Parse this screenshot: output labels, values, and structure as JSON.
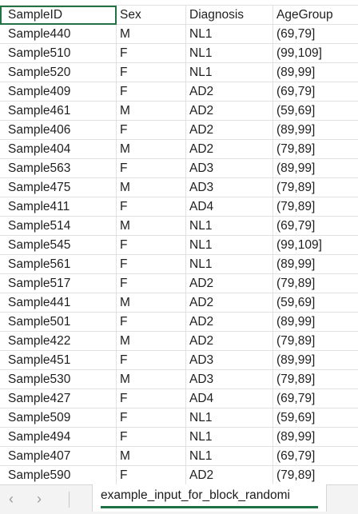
{
  "sheet": {
    "columns": [
      "SampleID",
      "Sex",
      "Diagnosis",
      "AgeGroup"
    ],
    "rows": [
      [
        "Sample440",
        "M",
        "NL1",
        "(69,79]"
      ],
      [
        "Sample510",
        "F",
        "NL1",
        "(99,109]"
      ],
      [
        "Sample520",
        "F",
        "NL1",
        "(89,99]"
      ],
      [
        "Sample409",
        "F",
        "AD2",
        "(69,79]"
      ],
      [
        "Sample461",
        "M",
        "AD2",
        "(59,69]"
      ],
      [
        "Sample406",
        "F",
        "AD2",
        "(89,99]"
      ],
      [
        "Sample404",
        "M",
        "AD2",
        "(79,89]"
      ],
      [
        "Sample563",
        "F",
        "AD3",
        "(89,99]"
      ],
      [
        "Sample475",
        "M",
        "AD3",
        "(79,89]"
      ],
      [
        "Sample411",
        "F",
        "AD4",
        "(79,89]"
      ],
      [
        "Sample514",
        "M",
        "NL1",
        "(69,79]"
      ],
      [
        "Sample545",
        "F",
        "NL1",
        "(99,109]"
      ],
      [
        "Sample561",
        "F",
        "NL1",
        "(89,99]"
      ],
      [
        "Sample517",
        "F",
        "AD2",
        "(79,89]"
      ],
      [
        "Sample441",
        "M",
        "AD2",
        "(59,69]"
      ],
      [
        "Sample501",
        "F",
        "AD2",
        "(89,99]"
      ],
      [
        "Sample422",
        "M",
        "AD2",
        "(79,89]"
      ],
      [
        "Sample451",
        "F",
        "AD3",
        "(89,99]"
      ],
      [
        "Sample530",
        "M",
        "AD3",
        "(79,89]"
      ],
      [
        "Sample427",
        "F",
        "AD4",
        "(69,79]"
      ],
      [
        "Sample509",
        "F",
        "NL1",
        "(59,69]"
      ],
      [
        "Sample494",
        "F",
        "NL1",
        "(89,99]"
      ],
      [
        "Sample407",
        "M",
        "NL1",
        "(69,79]"
      ],
      [
        "Sample590",
        "F",
        "AD2",
        "(79,89]"
      ]
    ]
  },
  "tabs": {
    "prev_icon": "chevron-left-icon",
    "next_icon": "chevron-right-icon",
    "active_sheet": "example_input_for_block_randomi"
  },
  "colors": {
    "selection": "#217346",
    "tab_underline": "#1e7145"
  }
}
